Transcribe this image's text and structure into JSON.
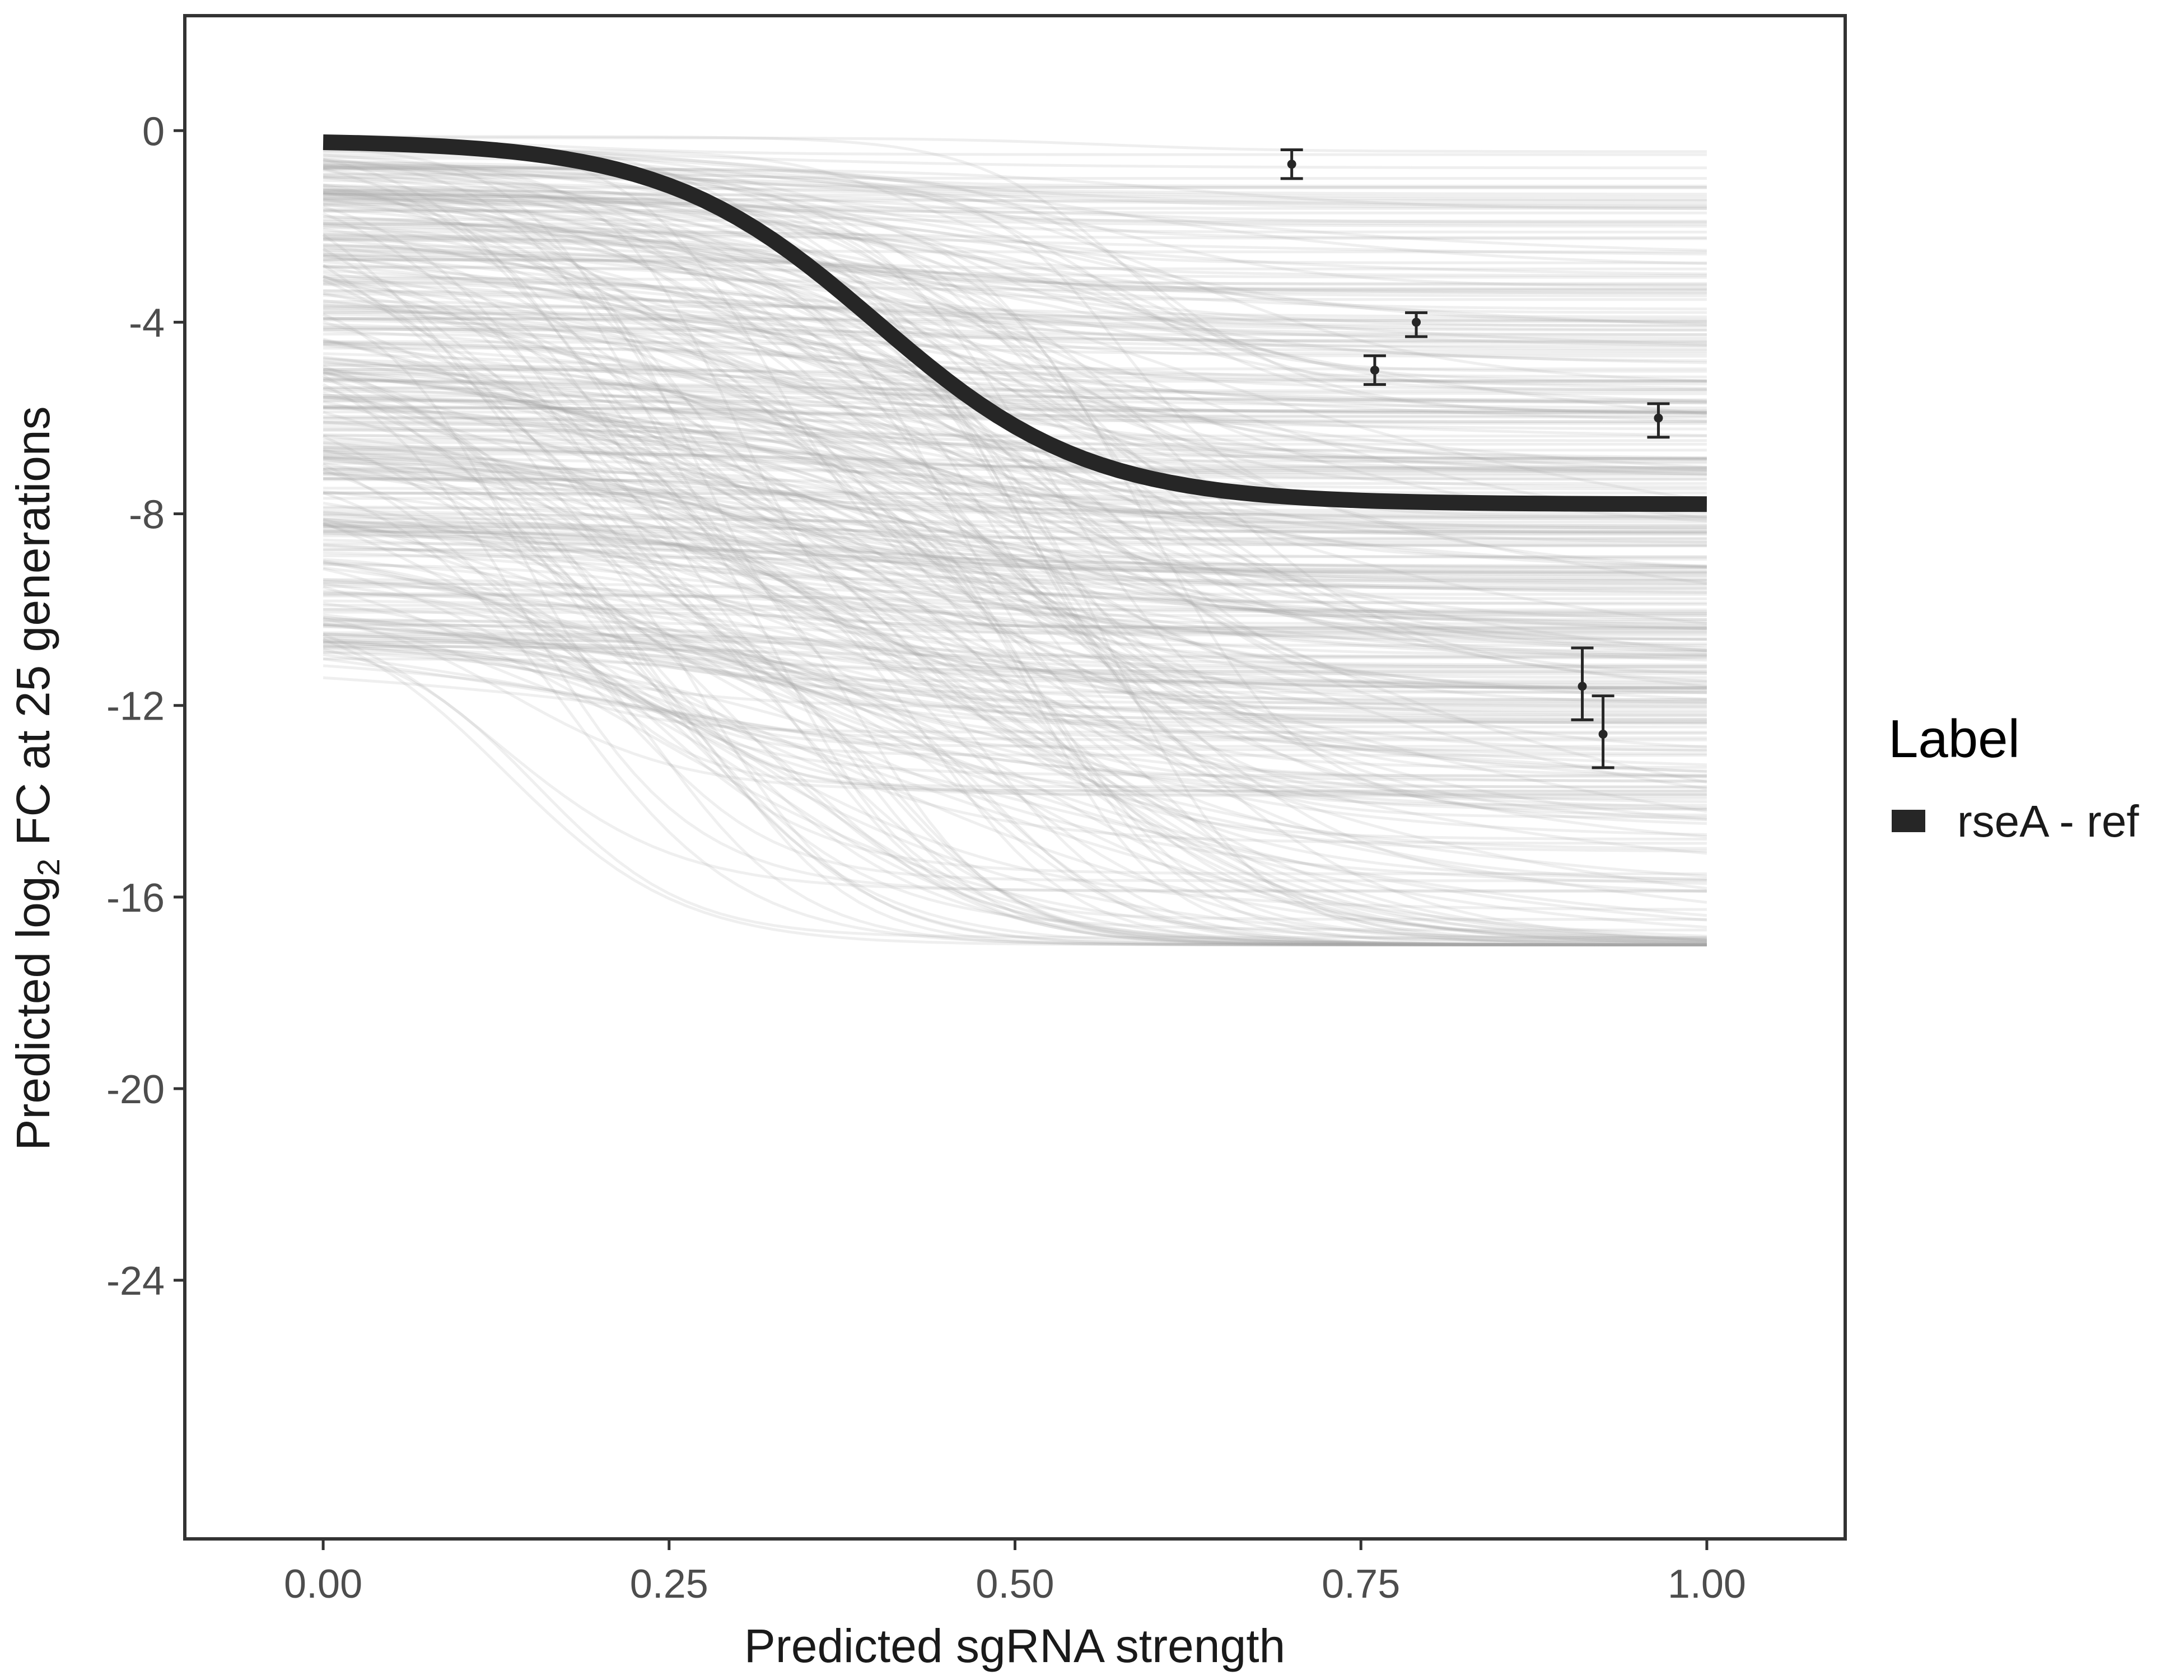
{
  "chart_data": {
    "type": "line",
    "xlabel": "Predicted sgRNA strength",
    "ylabel_prefix": "Predicted  log",
    "ylabel_subscript": "2",
    "ylabel_suffix": " FC at 25 generations",
    "xlim": [
      -0.1,
      1.1
    ],
    "ylim": [
      -29.4,
      2.4
    ],
    "x_ticks": [
      0,
      0.25,
      0.5,
      0.75,
      1
    ],
    "x_tick_labels": [
      "0.00",
      "0.25",
      "0.50",
      "0.75",
      "1.00"
    ],
    "y_ticks": [
      0,
      -4,
      -8,
      -12,
      -16,
      -20,
      -24
    ],
    "y_tick_labels": [
      "0",
      "-4",
      "-8",
      "-12",
      "-16",
      "-20",
      "-24"
    ],
    "grid": false,
    "legend": {
      "title": "Label",
      "position": "right",
      "entries": [
        {
          "label": "rseA - ref",
          "color": "#262626"
        }
      ]
    },
    "fitted_curve": {
      "name": "rseA - ref",
      "color": "#262626",
      "type": "sigmoid",
      "x_range": [
        0,
        1
      ],
      "y_top": -0.2,
      "y_bottom": -7.8,
      "midpoint": 0.4,
      "steepness": 13
    },
    "posterior_samples": {
      "color": "#a6a6a6",
      "count": 400,
      "x_range": [
        0,
        1
      ],
      "y_top_range": [
        -0.1,
        -11
      ],
      "y_bottom_range": [
        -0.3,
        -17
      ]
    },
    "points": [
      {
        "x": 0.7,
        "y": -0.7,
        "ymin": -1.0,
        "ymax": -0.4
      },
      {
        "x": 0.76,
        "y": -5.0,
        "ymin": -5.3,
        "ymax": -4.7
      },
      {
        "x": 0.79,
        "y": -4.0,
        "ymin": -4.3,
        "ymax": -3.8
      },
      {
        "x": 0.91,
        "y": -11.6,
        "ymin": -12.3,
        "ymax": -10.8
      },
      {
        "x": 0.925,
        "y": -12.6,
        "ymin": -13.3,
        "ymax": -11.8
      },
      {
        "x": 0.965,
        "y": -6.0,
        "ymin": -6.4,
        "ymax": -5.7
      }
    ]
  }
}
